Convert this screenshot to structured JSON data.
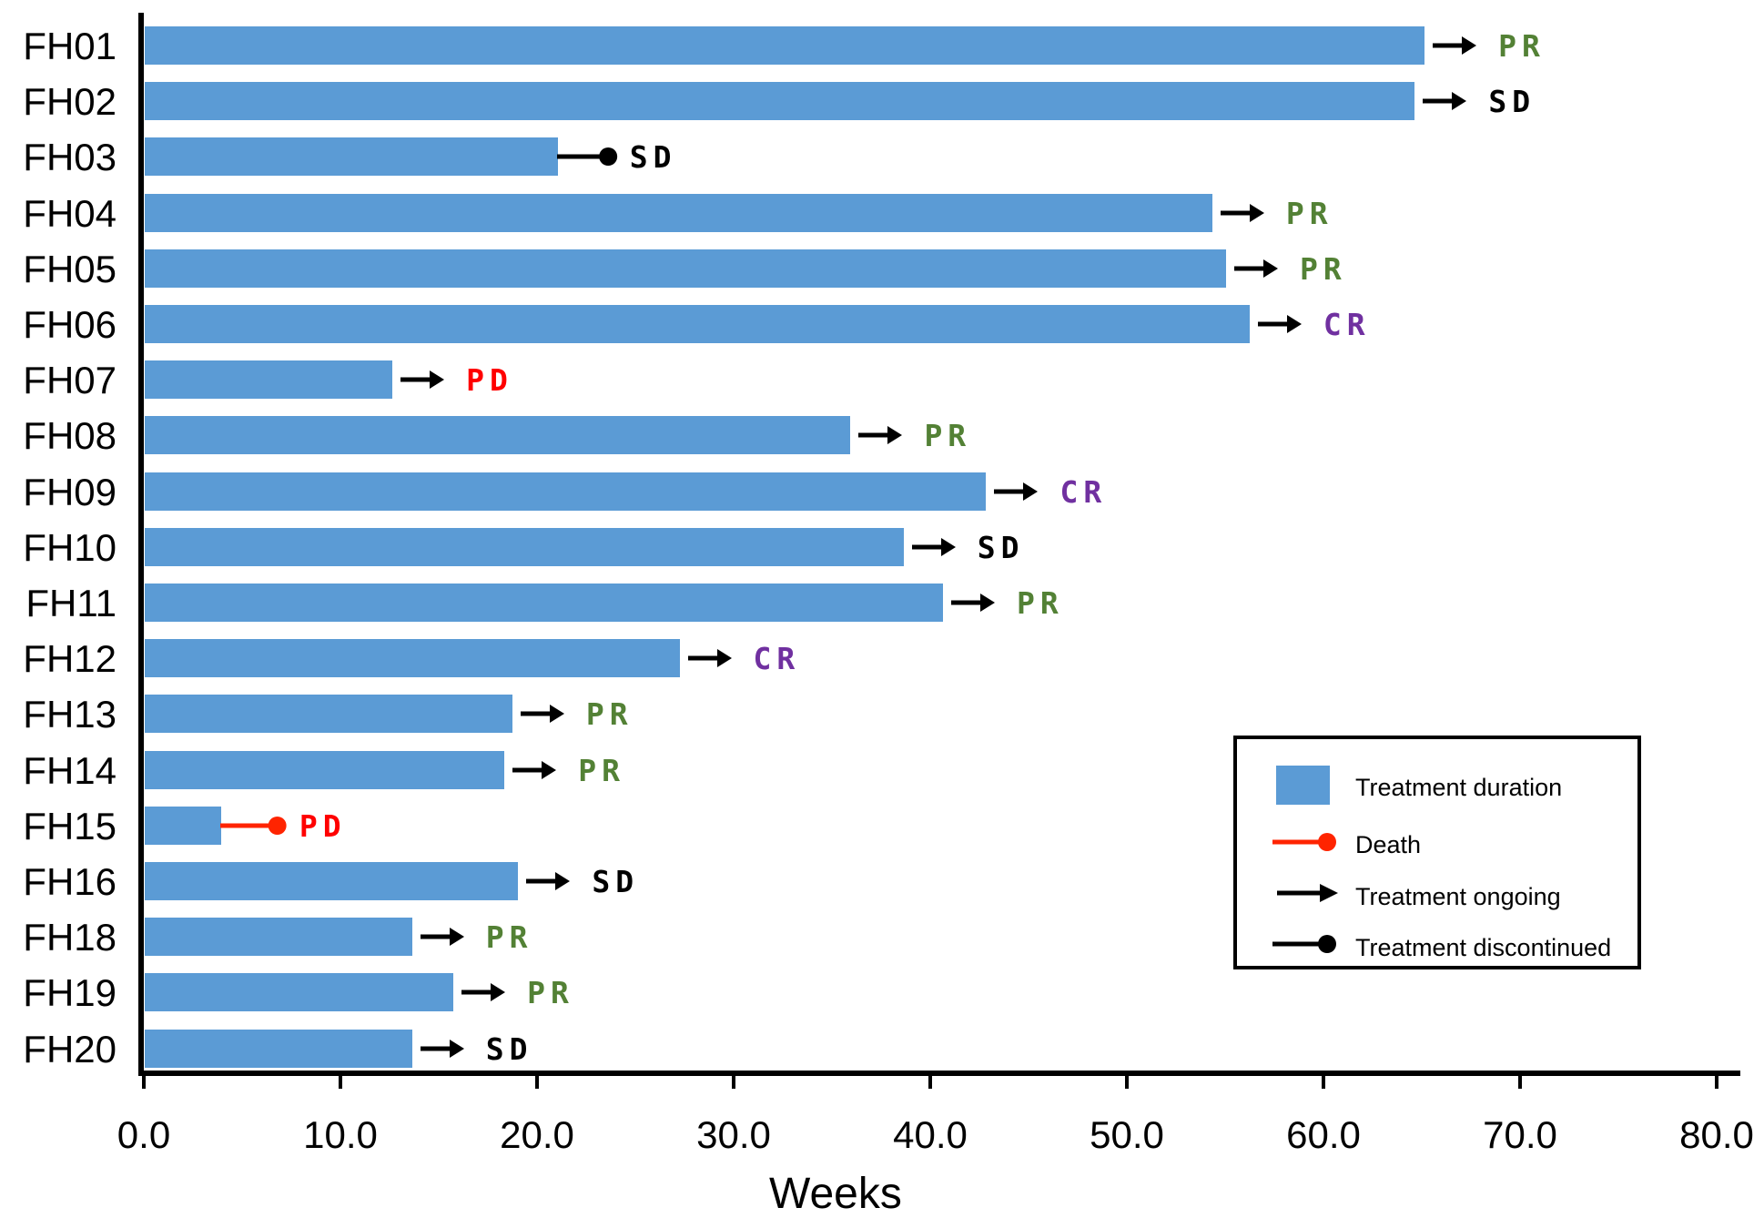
{
  "chart_data": {
    "type": "bar",
    "orientation": "horizontal",
    "title": "",
    "xlabel": "Weeks",
    "ylabel": "",
    "xlim": [
      0.0,
      80.0
    ],
    "grid": false,
    "bar_color": "#5B9BD5",
    "death_color": "#FF2400",
    "discontinued_color": "#000000",
    "response_colors": {
      "PR": "#538135",
      "SD": "#000000",
      "CR": "#7030A0",
      "PD": "#FF0000"
    },
    "xticks": [
      {
        "value": 0,
        "label": "0.0"
      },
      {
        "value": 10,
        "label": "10.0"
      },
      {
        "value": 20,
        "label": "20.0"
      },
      {
        "value": 30,
        "label": "30.0"
      },
      {
        "value": 40,
        "label": "40.0"
      },
      {
        "value": 50,
        "label": "50.0"
      },
      {
        "value": 60,
        "label": "60.0"
      },
      {
        "value": 70,
        "label": "70.0"
      },
      {
        "value": 80,
        "label": "80.0"
      }
    ],
    "rows": [
      {
        "patient": "FH01",
        "duration_weeks": 65.1,
        "end_marker": "arrow",
        "response": "PR"
      },
      {
        "patient": "FH02",
        "duration_weeks": 64.6,
        "end_marker": "arrow",
        "response": "SD"
      },
      {
        "patient": "FH03",
        "duration_weeks": 21.0,
        "end_marker": "discontinued",
        "marker_end_weeks": 23.6,
        "response": "SD"
      },
      {
        "patient": "FH04",
        "duration_weeks": 54.3,
        "end_marker": "arrow",
        "response": "PR"
      },
      {
        "patient": "FH05",
        "duration_weeks": 55.0,
        "end_marker": "arrow",
        "response": "PR"
      },
      {
        "patient": "FH06",
        "duration_weeks": 56.2,
        "end_marker": "arrow",
        "response": "CR"
      },
      {
        "patient": "FH07",
        "duration_weeks": 12.6,
        "end_marker": "arrow",
        "response": "PD"
      },
      {
        "patient": "FH08",
        "duration_weeks": 35.9,
        "end_marker": "arrow",
        "response": "PR"
      },
      {
        "patient": "FH09",
        "duration_weeks": 42.8,
        "end_marker": "arrow",
        "response": "CR"
      },
      {
        "patient": "FH10",
        "duration_weeks": 38.6,
        "end_marker": "arrow",
        "response": "SD"
      },
      {
        "patient": "FH11",
        "duration_weeks": 40.6,
        "end_marker": "arrow",
        "response": "PR"
      },
      {
        "patient": "FH12",
        "duration_weeks": 27.2,
        "end_marker": "arrow",
        "response": "CR"
      },
      {
        "patient": "FH13",
        "duration_weeks": 18.7,
        "end_marker": "arrow",
        "response": "PR"
      },
      {
        "patient": "FH14",
        "duration_weeks": 18.3,
        "end_marker": "arrow",
        "response": "PR"
      },
      {
        "patient": "FH15",
        "duration_weeks": 3.9,
        "end_marker": "death",
        "marker_end_weeks": 6.8,
        "response": "PD"
      },
      {
        "patient": "FH16",
        "duration_weeks": 19.0,
        "end_marker": "arrow",
        "response": "SD"
      },
      {
        "patient": "FH18",
        "duration_weeks": 13.6,
        "end_marker": "arrow",
        "response": "PR"
      },
      {
        "patient": "FH19",
        "duration_weeks": 15.7,
        "end_marker": "arrow",
        "response": "PR"
      },
      {
        "patient": "FH20",
        "duration_weeks": 13.6,
        "end_marker": "arrow",
        "response": "SD"
      }
    ],
    "legend": {
      "position": "lower right",
      "items": [
        {
          "label": "Treatment duration",
          "swatch": "blue-bar"
        },
        {
          "label": "Death",
          "swatch": "red-line-circle"
        },
        {
          "label": "Treatment ongoing",
          "swatch": "black-arrow"
        },
        {
          "label": "Treatment discontinued",
          "swatch": "black-line-circle"
        }
      ]
    }
  }
}
